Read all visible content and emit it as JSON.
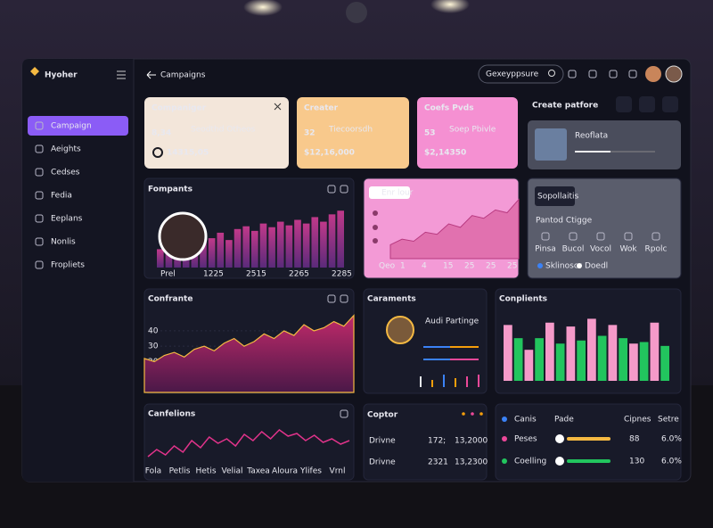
{
  "sidebar": {
    "brand": "Hyoher",
    "items": [
      "Campaign",
      "Aeights",
      "Cedses",
      "Fedia",
      "Eeplans",
      "Nonlis",
      "Fropliets"
    ]
  },
  "header": {
    "title": "Campaigns",
    "search": "Gexeyppsure"
  },
  "stats": [
    {
      "title": "Companiger",
      "count": "8,34",
      "note": "Seodthd Otheos",
      "amount": "14315,05",
      "color": "#f3e6da"
    },
    {
      "title": "Creater",
      "count": "32",
      "note": "Tiecoorsdh",
      "amount": "$12,16,000",
      "color": "#f8c98c"
    },
    {
      "title": "Coefs Pvds",
      "count": "53",
      "note": "Soep Pbivle",
      "amount": "$2,14350",
      "color": "#f590d2"
    }
  ],
  "create_panel": {
    "title": "Create patfore",
    "name": "Reoflata"
  },
  "fompants": {
    "title": "Fompants",
    "x_labels": [
      "Prel",
      "1225",
      "2515",
      "2265",
      "2285"
    ],
    "values": [
      20,
      25,
      22,
      30,
      28,
      35,
      32,
      38,
      30,
      42,
      45,
      40,
      48,
      44,
      50,
      46,
      52,
      48,
      55,
      50,
      58,
      62
    ],
    "ylim": [
      0,
      70
    ]
  },
  "pink_area": {
    "button": "Enr lour",
    "x_labels": [
      "Qeo",
      "1",
      "4",
      "15",
      "25",
      "25",
      "25"
    ],
    "values": [
      20,
      28,
      25,
      38,
      35,
      50,
      45,
      62,
      58,
      70,
      66,
      85
    ],
    "ylim": [
      0,
      100
    ]
  },
  "pantod": {
    "tag": "Sopollaitis",
    "title": "Pantod Ctigge",
    "icons": [
      "Pinsa",
      "Bucol",
      "Vocol",
      "Wok",
      "Rpolc"
    ],
    "legend": [
      "Sklinoscr",
      "Doedl"
    ]
  },
  "confrante": {
    "title": "Confrante",
    "values": [
      22,
      20,
      24,
      26,
      23,
      28,
      30,
      27,
      32,
      35,
      30,
      33,
      38,
      35,
      40,
      37,
      44,
      40,
      42,
      46,
      43,
      50
    ],
    "ylim": [
      0,
      55
    ],
    "yticks": [
      10,
      20,
      30,
      40
    ]
  },
  "caraments": {
    "title": "Caraments",
    "name": "Audi Partinge",
    "mini_bars": [
      12,
      8,
      14,
      10,
      12,
      14
    ],
    "ylim": [
      0,
      16
    ],
    "colors": [
      "#e5e7eb",
      "#f59e0b",
      "#3b82f6",
      "#f59e0b",
      "#ec4899",
      "#ec4899"
    ]
  },
  "conplients": {
    "title": "Conplients",
    "ylim": [
      0,
      100
    ],
    "series": [
      {
        "color": "#f59ac9",
        "values": [
          72,
          40,
          75,
          70,
          80,
          72,
          48,
          75
        ]
      },
      {
        "color": "#22c55e",
        "values": [
          55,
          55,
          48,
          52,
          58,
          55,
          50,
          45
        ]
      }
    ]
  },
  "canfelions": {
    "title": "Canfelions",
    "x_labels": [
      "Fola",
      "Petlis",
      "Hetis",
      "Velial",
      "Taxea",
      "Aloura",
      "Ylifes",
      "Vrnl"
    ],
    "values": [
      10,
      18,
      12,
      22,
      15,
      28,
      20,
      32,
      25,
      30,
      22,
      35,
      28,
      38,
      30,
      40,
      33,
      36,
      28,
      34,
      26,
      30,
      24,
      28
    ],
    "ylim": [
      0,
      50
    ]
  },
  "coptor": {
    "title": "Coptor",
    "rows": [
      [
        "Drivne",
        "172;",
        "13,2000"
      ],
      [
        "Drivne",
        "2321",
        "13,2300"
      ]
    ]
  },
  "table": {
    "header": [
      "Canis",
      "Pade",
      "Cipnes",
      "Setre"
    ],
    "rows": [
      {
        "name": "Peses",
        "value": "88",
        "pct": "6.0%",
        "color": "#ec4899",
        "bar": "#f5b942"
      },
      {
        "name": "Coelling",
        "value": "130",
        "pct": "6.0%",
        "color": "#22c55e",
        "bar": "#22c55e"
      }
    ]
  }
}
